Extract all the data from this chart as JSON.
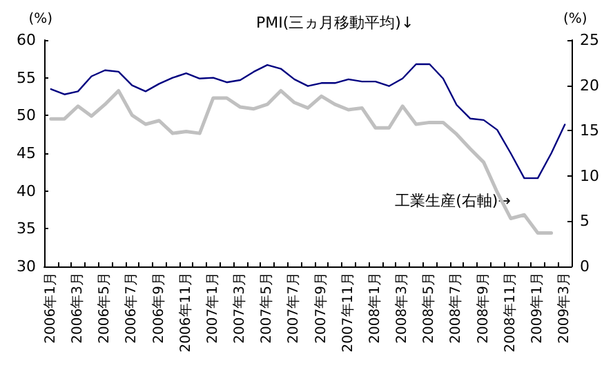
{
  "chart_data": {
    "type": "line",
    "ylabel": "(%)",
    "y2label": "(%)",
    "categories": [
      "2006年1月",
      null,
      "2006年3月",
      null,
      "2006年5月",
      null,
      "2006年7月",
      null,
      "2006年9月",
      null,
      "2006年11月",
      null,
      "2007年1月",
      null,
      "2007年3月",
      null,
      "2007年5月",
      null,
      "2007年7月",
      null,
      "2007年9月",
      null,
      "2007年11月",
      null,
      "2008年1月",
      null,
      "2008年3月",
      null,
      "2008年5月",
      null,
      "2008年7月",
      null,
      "2008年9月",
      null,
      "2008年11月",
      null,
      "2009年1月",
      null,
      "2009年3月"
    ],
    "series": [
      {
        "name": "PMI(三ヵ月移動平均)↓",
        "color": "#000080",
        "values": [
          53.5,
          52.8,
          53.2,
          55.2,
          56.0,
          55.8,
          54.0,
          53.2,
          54.2,
          55.0,
          55.6,
          54.9,
          55.0,
          54.4,
          54.7,
          55.8,
          56.7,
          56.2,
          54.8,
          53.9,
          54.3,
          54.3,
          54.8,
          54.5,
          54.5,
          53.9,
          54.9,
          56.8,
          56.8,
          54.9,
          51.4,
          49.6,
          49.4,
          48.1,
          45.0,
          41.7,
          41.7,
          45.0,
          48.8
        ]
      },
      {
        "name": "工業生産(右軸)→",
        "color": "#c0c0c0",
        "axis": "y2",
        "values": [
          16.3,
          16.3,
          17.7,
          16.6,
          17.9,
          19.4,
          16.7,
          15.7,
          16.1,
          14.7,
          14.9,
          14.7,
          18.6,
          18.6,
          17.6,
          17.4,
          17.9,
          19.4,
          18.1,
          17.5,
          18.8,
          17.9,
          17.3,
          17.5,
          15.3,
          15.3,
          17.7,
          15.7,
          15.9,
          15.9,
          14.6,
          13.0,
          11.5,
          8.2,
          5.3,
          5.7,
          3.7,
          3.7,
          null
        ]
      }
    ],
    "ylim": [
      30,
      60
    ],
    "yticks": [
      30,
      35,
      40,
      45,
      50,
      55,
      60
    ],
    "y2lim": [
      0,
      25
    ],
    "y2ticks": [
      0,
      5,
      10,
      15,
      20,
      25
    ],
    "grid": false,
    "legend": false,
    "marker": "none",
    "line_style": "solid"
  }
}
